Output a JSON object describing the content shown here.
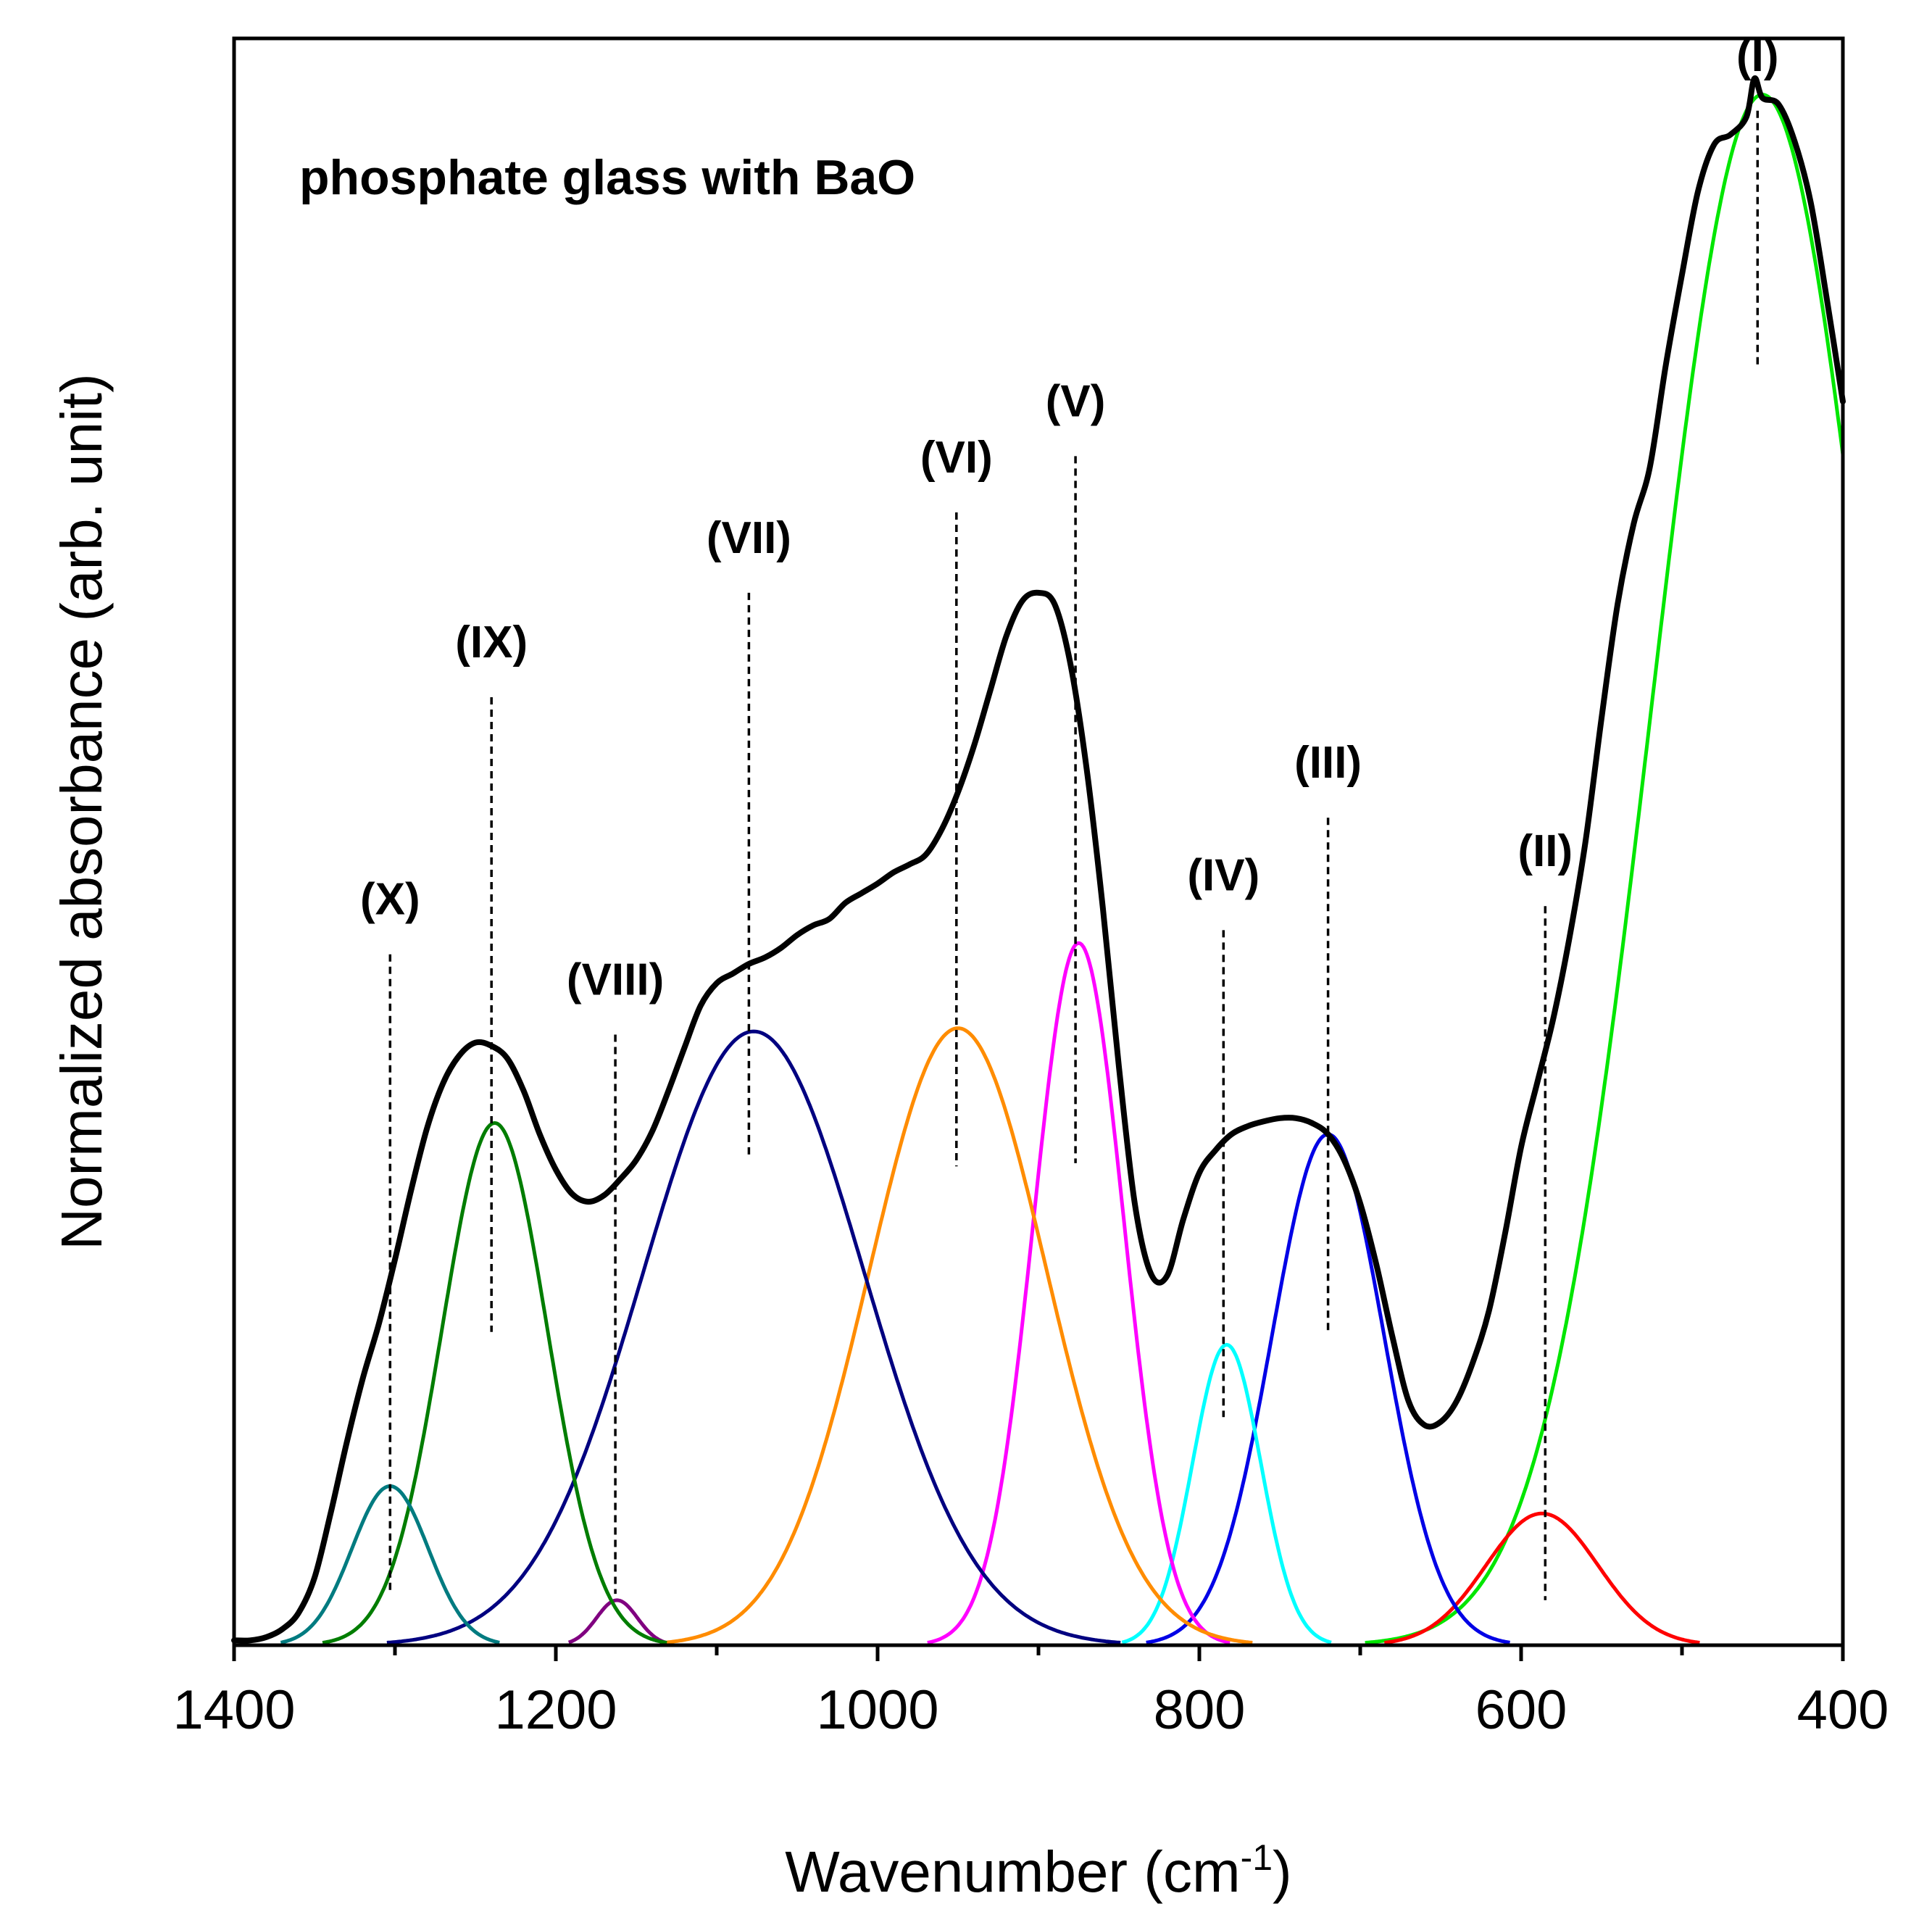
{
  "chart_data": {
    "type": "line",
    "title": "phosphate glass with BaO",
    "xlabel": "Wavenumber (cm",
    "xlabel_superscript": "-1",
    "xlabel_suffix": ")",
    "ylabel": "Normalized absorbance (arb. unit)",
    "xlim": [
      1400,
      400
    ],
    "ylim": [
      0,
      1.0
    ],
    "x_reversed": true,
    "x_ticks": [
      1400,
      1200,
      1000,
      800,
      600,
      400
    ],
    "x_minor_ticks": [
      1300,
      1100,
      900,
      700,
      500
    ],
    "show_y_ticks": false,
    "grid": false,
    "colors": {
      "measured": "#000000",
      "I": "#00e600",
      "II": "#ff0000",
      "III": "#0000e6",
      "IV": "#00ffff",
      "V": "#ff00ff",
      "VI": "#ff8c00",
      "VII": "#000080",
      "VIII": "#800080",
      "IX": "#007d00",
      "X": "#007b80"
    },
    "components": [
      {
        "name": "I",
        "label": "(I)",
        "center": 450,
        "height": 0.965,
        "fwhm": 162,
        "color": "#00e600"
      },
      {
        "name": "II",
        "label": "(II)",
        "center": 587,
        "height": 0.082,
        "fwhm": 82,
        "color": "#ff0000"
      },
      {
        "name": "III",
        "label": "(III)",
        "center": 720,
        "height": 0.318,
        "fwhm": 82,
        "color": "#0000e6"
      },
      {
        "name": "IV",
        "label": "(IV)",
        "center": 783,
        "height": 0.187,
        "fwhm": 50,
        "color": "#00ffff"
      },
      {
        "name": "V",
        "label": "(V)",
        "center": 875,
        "height": 0.437,
        "fwhm": 66,
        "color": "#ff00ff"
      },
      {
        "name": "VI",
        "label": "(VI)",
        "center": 950,
        "height": 0.384,
        "fwhm": 130,
        "color": "#ff8c00"
      },
      {
        "name": "VII",
        "label": "(VII)",
        "center": 1077,
        "height": 0.382,
        "fwhm": 162,
        "color": "#000080"
      },
      {
        "name": "VIII",
        "label": "(VIII)",
        "center": 1162,
        "height": 0.028,
        "fwhm": 30,
        "color": "#800080"
      },
      {
        "name": "IX",
        "label": "(IX)",
        "center": 1238,
        "height": 0.325,
        "fwhm": 77,
        "color": "#007d00"
      },
      {
        "name": "X",
        "label": "(X)",
        "center": 1303,
        "height": 0.099,
        "fwhm": 56,
        "color": "#007b80"
      }
    ],
    "peak_markers": [
      {
        "label": "(I)",
        "x": 453,
        "y_top": 0.955,
        "y_bottom": 0.795
      },
      {
        "label": "(II)",
        "x": 585,
        "y_top": 0.46,
        "y_bottom": 0.028
      },
      {
        "label": "(III)",
        "x": 720,
        "y_top": 0.515,
        "y_bottom": 0.195
      },
      {
        "label": "(IV)",
        "x": 785,
        "y_top": 0.445,
        "y_bottom": 0.142
      },
      {
        "label": "(V)",
        "x": 877,
        "y_top": 0.74,
        "y_bottom": 0.3
      },
      {
        "label": "(VI)",
        "x": 951,
        "y_top": 0.705,
        "y_bottom": 0.298
      },
      {
        "label": "(VII)",
        "x": 1080,
        "y_top": 0.655,
        "y_bottom": 0.305
      },
      {
        "label": "(VIII)",
        "x": 1163,
        "y_top": 0.38,
        "y_bottom": 0.032
      },
      {
        "label": "(IX)",
        "x": 1240,
        "y_top": 0.59,
        "y_bottom": 0.195
      },
      {
        "label": "(X)",
        "x": 1303,
        "y_top": 0.43,
        "y_bottom": 0.032
      }
    ],
    "measured": {
      "name": "measured spectrum",
      "x": [
        1400,
        1390,
        1380,
        1370,
        1360,
        1350,
        1340,
        1330,
        1320,
        1310,
        1300,
        1290,
        1280,
        1270,
        1260,
        1250,
        1240,
        1230,
        1220,
        1210,
        1200,
        1190,
        1180,
        1170,
        1160,
        1150,
        1140,
        1130,
        1120,
        1110,
        1100,
        1090,
        1080,
        1070,
        1060,
        1050,
        1040,
        1030,
        1020,
        1010,
        1000,
        990,
        980,
        970,
        960,
        950,
        940,
        930,
        920,
        910,
        900,
        890,
        880,
        870,
        860,
        850,
        840,
        830,
        820,
        810,
        800,
        790,
        780,
        770,
        760,
        750,
        740,
        730,
        720,
        710,
        700,
        690,
        680,
        670,
        660,
        650,
        640,
        630,
        620,
        610,
        600,
        590,
        580,
        570,
        560,
        550,
        540,
        530,
        520,
        510,
        500,
        490,
        480,
        470,
        460,
        455,
        450,
        440,
        430,
        420,
        410,
        400
      ],
      "y": [
        0.003,
        0.003,
        0.005,
        0.01,
        0.02,
        0.042,
        0.082,
        0.126,
        0.166,
        0.2,
        0.24,
        0.283,
        0.322,
        0.35,
        0.367,
        0.375,
        0.373,
        0.365,
        0.345,
        0.318,
        0.296,
        0.281,
        0.276,
        0.28,
        0.29,
        0.302,
        0.32,
        0.345,
        0.372,
        0.398,
        0.412,
        0.418,
        0.424,
        0.428,
        0.434,
        0.442,
        0.448,
        0.452,
        0.462,
        0.468,
        0.474,
        0.481,
        0.486,
        0.492,
        0.508,
        0.531,
        0.56,
        0.594,
        0.628,
        0.65,
        0.655,
        0.648,
        0.61,
        0.545,
        0.459,
        0.36,
        0.274,
        0.231,
        0.23,
        0.265,
        0.294,
        0.308,
        0.318,
        0.323,
        0.326,
        0.328,
        0.328,
        0.325,
        0.318,
        0.302,
        0.275,
        0.237,
        0.192,
        0.152,
        0.137,
        0.139,
        0.152,
        0.176,
        0.208,
        0.256,
        0.31,
        0.35,
        0.39,
        0.44,
        0.5,
        0.577,
        0.648,
        0.698,
        0.733,
        0.797,
        0.853,
        0.905,
        0.934,
        0.94,
        0.951,
        0.975,
        0.963,
        0.959,
        0.936,
        0.898,
        0.838,
        0.774
      ]
    }
  }
}
